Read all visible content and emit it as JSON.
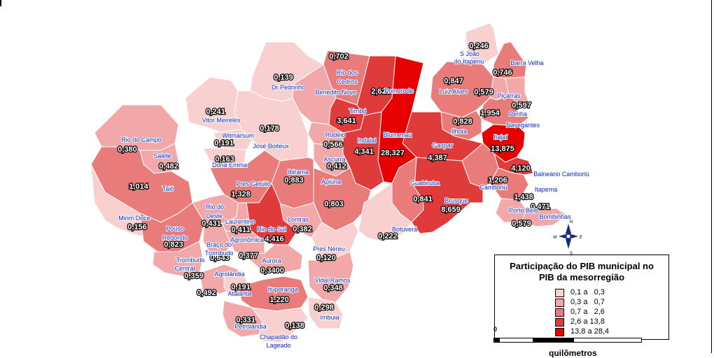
{
  "legend": {
    "title_line1": "Participação do PIB municipal no",
    "title_line2": "PIB da mesorregião",
    "classes": [
      {
        "label": "0,1 a   0,3",
        "color": "#f9d0d0"
      },
      {
        "label": "0,3 a   0,7",
        "color": "#f2a8a8"
      },
      {
        "label": "0,7 a   2,6",
        "color": "#ea7b7b"
      },
      {
        "label": "2,6 a 13,8",
        "color": "#e03b3b"
      },
      {
        "label": "13,8 a 28,4",
        "color": "#e60000"
      }
    ]
  },
  "scale": {
    "zero_label": "0",
    "unit_label": "quilômetros"
  },
  "compass": {
    "north": "N",
    "south": "S",
    "east": "E",
    "west": "W"
  },
  "municipalities": [
    {
      "name": "S João do Itaperiú",
      "value": "0,246",
      "class": 0
    },
    {
      "name": "Barra Velha",
      "value": "0,746",
      "class": 2
    },
    {
      "name": "Luiz Alves",
      "value": "0,847",
      "class": 2
    },
    {
      "name": "Piçarras",
      "value": "0,579",
      "class": 1
    },
    {
      "name": "Penha",
      "value": "0,597",
      "class": 1
    },
    {
      "name": "Navegantes",
      "value": "1,954",
      "class": 2
    },
    {
      "name": "Ilhota",
      "value": "0,828",
      "class": 2
    },
    {
      "name": "Itajaí",
      "value": "13,875",
      "class": 4
    },
    {
      "name": "Balneário Camboriú",
      "value": "4,120",
      "class": 3
    },
    {
      "name": "Camboriú",
      "value": "1,206",
      "class": 2
    },
    {
      "name": "Itapema",
      "value": "1,438",
      "class": 2
    },
    {
      "name": "Porto Belo",
      "value": "0,471",
      "class": 1
    },
    {
      "name": "Bombinhas",
      "value": "0,579",
      "class": 1
    },
    {
      "name": "Brusque",
      "value": "8,659",
      "class": 3
    },
    {
      "name": "Guabiruba",
      "value": "0,841",
      "class": 2
    },
    {
      "name": "Gaspar",
      "value": "4,387",
      "class": 3
    },
    {
      "name": "Blumenau",
      "value": "28,327",
      "class": 4
    },
    {
      "name": "Pomerode",
      "value": "2,621",
      "class": 3
    },
    {
      "name": "Timbó",
      "value": "3,641",
      "class": 3
    },
    {
      "name": "Indaial",
      "value": "4,341",
      "class": 3
    },
    {
      "name": "Rio dos Cedros",
      "value": "0,702",
      "class": 2
    },
    {
      "name": "Benedito Novo",
      "value": "",
      "class": 1
    },
    {
      "name": "Dr Pedrinho",
      "value": "0,139",
      "class": 0
    },
    {
      "name": "Rodeio",
      "value": "0,566",
      "class": 1
    },
    {
      "name": "Ascurra",
      "value": "0,412",
      "class": 1
    },
    {
      "name": "Apiúna",
      "value": "0,803",
      "class": 2
    },
    {
      "name": "Botuverá",
      "value": "0,222",
      "class": 0
    },
    {
      "name": "Ibirama",
      "value": "0,883",
      "class": 2
    },
    {
      "name": "José Boiteux",
      "value": "0,178",
      "class": 0
    },
    {
      "name": "Vitor Meireles",
      "value": "0,241",
      "class": 0
    },
    {
      "name": "Witmarsum",
      "value": "0,191",
      "class": 0
    },
    {
      "name": "Dona Emma",
      "value": "0,163",
      "class": 0
    },
    {
      "name": "Pres Getúlio",
      "value": "1,328",
      "class": 2
    },
    {
      "name": "Lontras",
      "value": "0,382",
      "class": 1
    },
    {
      "name": "Rio do Sul",
      "value": "4,416",
      "class": 3
    },
    {
      "name": "Rio do Campo",
      "value": "0,380",
      "class": 1
    },
    {
      "name": "Salete",
      "value": "0,482",
      "class": 1
    },
    {
      "name": "Taió",
      "value": "1,014",
      "class": 2
    },
    {
      "name": "Mirim Doce",
      "value": "0,156",
      "class": 0
    },
    {
      "name": "Rio do Oeste",
      "value": "0,431",
      "class": 1
    },
    {
      "name": "Laurentino",
      "value": "0,411",
      "class": 1
    },
    {
      "name": "Pouso Redondo",
      "value": "0,823",
      "class": 2
    },
    {
      "name": "Braço do Trombudo",
      "value": "0,643",
      "class": 1
    },
    {
      "name": "Agronômica",
      "value": "0,377",
      "class": 1
    },
    {
      "name": "Trombudo Central",
      "value": "0,359",
      "class": 1
    },
    {
      "name": "Agrolândia",
      "value": "0,492",
      "class": 1
    },
    {
      "name": "Aurora",
      "value": "0,3400",
      "class": 1
    },
    {
      "name": "Pres Nereu",
      "value": "0,120",
      "class": 0
    },
    {
      "name": "Atalanta",
      "value": "0,191",
      "class": 0
    },
    {
      "name": "Ituporanga",
      "value": "1,220",
      "class": 2
    },
    {
      "name": "Vidal Ramos",
      "value": "0,348",
      "class": 1
    },
    {
      "name": "Imbuia",
      "value": "0,298",
      "class": 0
    },
    {
      "name": "Petrolândia",
      "value": "0,331",
      "class": 1
    },
    {
      "name": "Chapadão do Lageado",
      "value": "0,138",
      "class": 0
    }
  ]
}
